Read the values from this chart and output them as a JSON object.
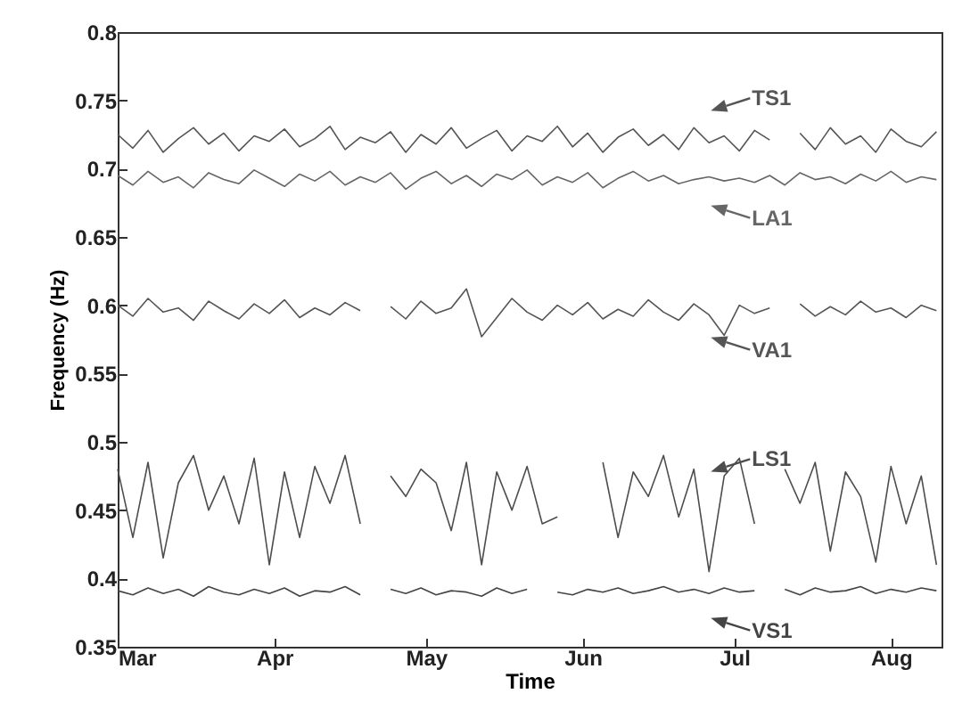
{
  "chart_data": {
    "type": "line",
    "xlabel": "Time",
    "ylabel": "Frequency (Hz)",
    "legend": "right",
    "xlim": [
      "--03-01",
      "--08-11"
    ],
    "xticks": [
      {
        "value": "--03-01",
        "label": "Mar"
      },
      {
        "value": "--04-01",
        "label": "Apr"
      },
      {
        "value": "--05-01",
        "label": "May"
      },
      {
        "value": "--06-01",
        "label": "Jun"
      },
      {
        "value": "--07-01",
        "label": "Jul"
      },
      {
        "value": "--08-01",
        "label": "Aug"
      }
    ],
    "ylim": [
      0.35,
      0.8
    ],
    "yticks": [
      0.35,
      0.4,
      0.45,
      0.5,
      0.55,
      0.6,
      0.65,
      0.7,
      0.75,
      0.8
    ],
    "x": [
      "--03-01",
      "--03-04",
      "--03-07",
      "--03-10",
      "--03-13",
      "--03-16",
      "--03-19",
      "--03-22",
      "--03-25",
      "--03-28",
      "--03-31",
      "--04-03",
      "--04-06",
      "--04-09",
      "--04-12",
      "--04-15",
      "--04-18",
      "--04-21",
      "--04-24",
      "--04-27",
      "--04-30",
      "--05-03",
      "--05-06",
      "--05-09",
      "--05-12",
      "--05-15",
      "--05-18",
      "--05-21",
      "--05-24",
      "--05-27",
      "--05-30",
      "--06-02",
      "--06-05",
      "--06-08",
      "--06-11",
      "--06-14",
      "--06-17",
      "--06-20",
      "--06-23",
      "--06-26",
      "--06-29",
      "--07-02",
      "--07-05",
      "--07-08",
      "--07-11",
      "--07-14",
      "--07-17",
      "--07-20",
      "--07-23",
      "--07-26",
      "--07-29",
      "--08-01",
      "--08-04",
      "--08-07",
      "--08-10"
    ],
    "series": [
      {
        "name": "TS1",
        "color": "#555555",
        "values": [
          0.725,
          0.715,
          0.728,
          0.712,
          0.722,
          0.73,
          0.718,
          0.726,
          0.713,
          0.724,
          0.72,
          0.729,
          0.716,
          0.722,
          0.731,
          0.714,
          0.723,
          0.719,
          0.727,
          0.712,
          0.725,
          0.718,
          0.73,
          0.715,
          0.722,
          0.728,
          0.713,
          0.724,
          0.72,
          0.731,
          0.716,
          0.726,
          0.712,
          0.723,
          0.729,
          0.717,
          0.725,
          0.714,
          0.73,
          0.719,
          0.724,
          0.713,
          0.728,
          0.721,
          null,
          0.726,
          0.714,
          0.73,
          0.718,
          0.724,
          0.712,
          0.729,
          0.72,
          0.716,
          0.727
        ]
      },
      {
        "name": "LA1",
        "color": "#666666",
        "values": [
          0.695,
          0.688,
          0.698,
          0.69,
          0.694,
          0.686,
          0.697,
          0.692,
          0.689,
          0.699,
          0.693,
          0.687,
          0.696,
          0.691,
          0.698,
          0.688,
          0.694,
          0.69,
          0.697,
          0.685,
          0.693,
          0.698,
          0.689,
          0.695,
          0.687,
          0.696,
          0.692,
          0.699,
          0.688,
          0.694,
          0.69,
          0.697,
          0.686,
          0.693,
          0.698,
          0.691,
          0.695,
          0.689,
          0.692,
          0.694,
          0.691,
          0.693,
          0.69,
          0.695,
          0.688,
          0.697,
          0.692,
          0.694,
          0.689,
          0.696,
          0.691,
          0.698,
          0.69,
          0.694,
          0.692
        ]
      },
      {
        "name": "VA1",
        "color": "#555555",
        "values": [
          0.6,
          0.592,
          0.605,
          0.595,
          0.598,
          0.589,
          0.603,
          0.596,
          0.59,
          0.601,
          0.594,
          0.604,
          0.591,
          0.598,
          0.593,
          0.602,
          0.596,
          null,
          0.599,
          0.59,
          0.603,
          0.594,
          0.598,
          0.612,
          0.577,
          0.591,
          0.605,
          0.595,
          0.589,
          0.6,
          0.593,
          0.602,
          0.59,
          0.597,
          0.592,
          0.604,
          0.595,
          0.589,
          0.601,
          0.593,
          0.578,
          0.6,
          0.594,
          0.598,
          null,
          0.601,
          0.592,
          0.599,
          0.593,
          0.603,
          0.595,
          0.598,
          0.591,
          0.6,
          0.596
        ]
      },
      {
        "name": "LS1",
        "color": "#4d4d4d",
        "values": [
          0.48,
          0.43,
          0.485,
          0.415,
          0.47,
          0.49,
          0.45,
          0.475,
          0.44,
          0.488,
          0.41,
          0.478,
          0.43,
          0.482,
          0.455,
          0.49,
          0.44,
          null,
          0.475,
          0.46,
          0.48,
          0.47,
          0.435,
          0.485,
          0.41,
          0.478,
          0.45,
          0.482,
          0.44,
          0.445,
          null,
          null,
          0.485,
          0.43,
          0.478,
          0.46,
          0.49,
          0.445,
          0.48,
          0.405,
          0.475,
          0.488,
          0.44,
          null,
          0.48,
          0.455,
          0.485,
          0.42,
          0.478,
          0.46,
          0.412,
          0.482,
          0.44,
          0.475,
          0.41
        ]
      },
      {
        "name": "VS1",
        "color": "#444444",
        "values": [
          0.391,
          0.388,
          0.393,
          0.389,
          0.392,
          0.387,
          0.394,
          0.39,
          0.388,
          0.392,
          0.389,
          0.393,
          0.387,
          0.391,
          0.39,
          0.394,
          0.388,
          null,
          0.392,
          0.389,
          0.393,
          0.388,
          0.391,
          0.39,
          0.387,
          0.393,
          0.389,
          0.392,
          null,
          0.39,
          0.388,
          0.392,
          0.39,
          0.393,
          0.389,
          0.391,
          0.394,
          0.39,
          0.392,
          0.389,
          0.393,
          0.39,
          0.391,
          null,
          0.392,
          0.388,
          0.393,
          0.39,
          0.391,
          0.394,
          0.389,
          0.392,
          0.39,
          0.393,
          0.391
        ]
      }
    ]
  }
}
